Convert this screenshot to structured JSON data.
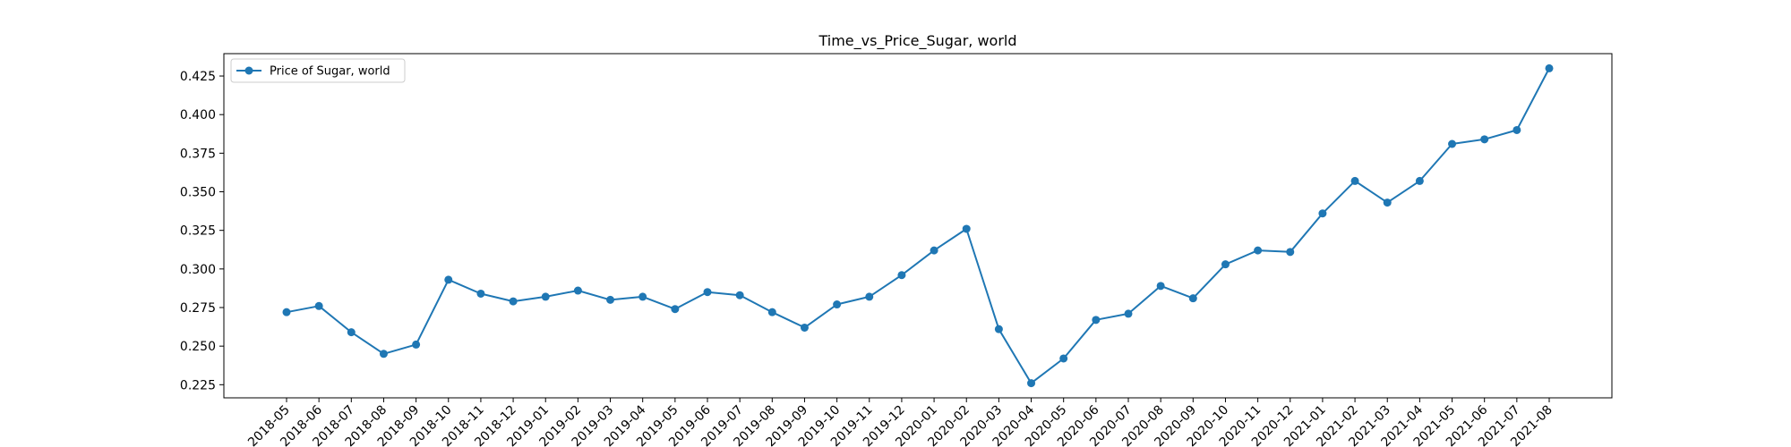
{
  "chart_data": {
    "type": "line",
    "title": "Time_vs_Price_Sugar, world",
    "xlabel": "",
    "ylabel": "",
    "x": [
      "2018-05",
      "2018-06",
      "2018-07",
      "2018-08",
      "2018-09",
      "2018-10",
      "2018-11",
      "2018-12",
      "2019-01",
      "2019-02",
      "2019-03",
      "2019-04",
      "2019-05",
      "2019-06",
      "2019-07",
      "2019-08",
      "2019-09",
      "2019-10",
      "2019-11",
      "2019-12",
      "2020-01",
      "2020-02",
      "2020-03",
      "2020-04",
      "2020-05",
      "2020-06",
      "2020-07",
      "2020-08",
      "2020-09",
      "2020-10",
      "2020-11",
      "2020-12",
      "2021-01",
      "2021-02",
      "2021-03",
      "2021-04",
      "2021-05",
      "2021-06",
      "2021-07",
      "2021-08"
    ],
    "series": [
      {
        "name": "Price of Sugar, world",
        "color": "#1f77b4",
        "marker": "circle",
        "values": [
          0.272,
          0.276,
          0.259,
          0.245,
          0.251,
          0.293,
          0.284,
          0.279,
          0.282,
          0.286,
          0.28,
          0.282,
          0.274,
          0.285,
          0.283,
          0.272,
          0.262,
          0.277,
          0.282,
          0.296,
          0.312,
          0.326,
          0.261,
          0.226,
          0.242,
          0.267,
          0.271,
          0.289,
          0.281,
          0.303,
          0.312,
          0.311,
          0.336,
          0.357,
          0.343,
          0.357,
          0.381,
          0.384,
          0.39,
          0.43
        ]
      }
    ],
    "yticks": [
      "0.225",
      "0.250",
      "0.275",
      "0.300",
      "0.325",
      "0.350",
      "0.375",
      "0.400",
      "0.425"
    ],
    "ylim": [
      0.2165,
      0.4395
    ],
    "grid": false,
    "legend": "upper-left"
  }
}
